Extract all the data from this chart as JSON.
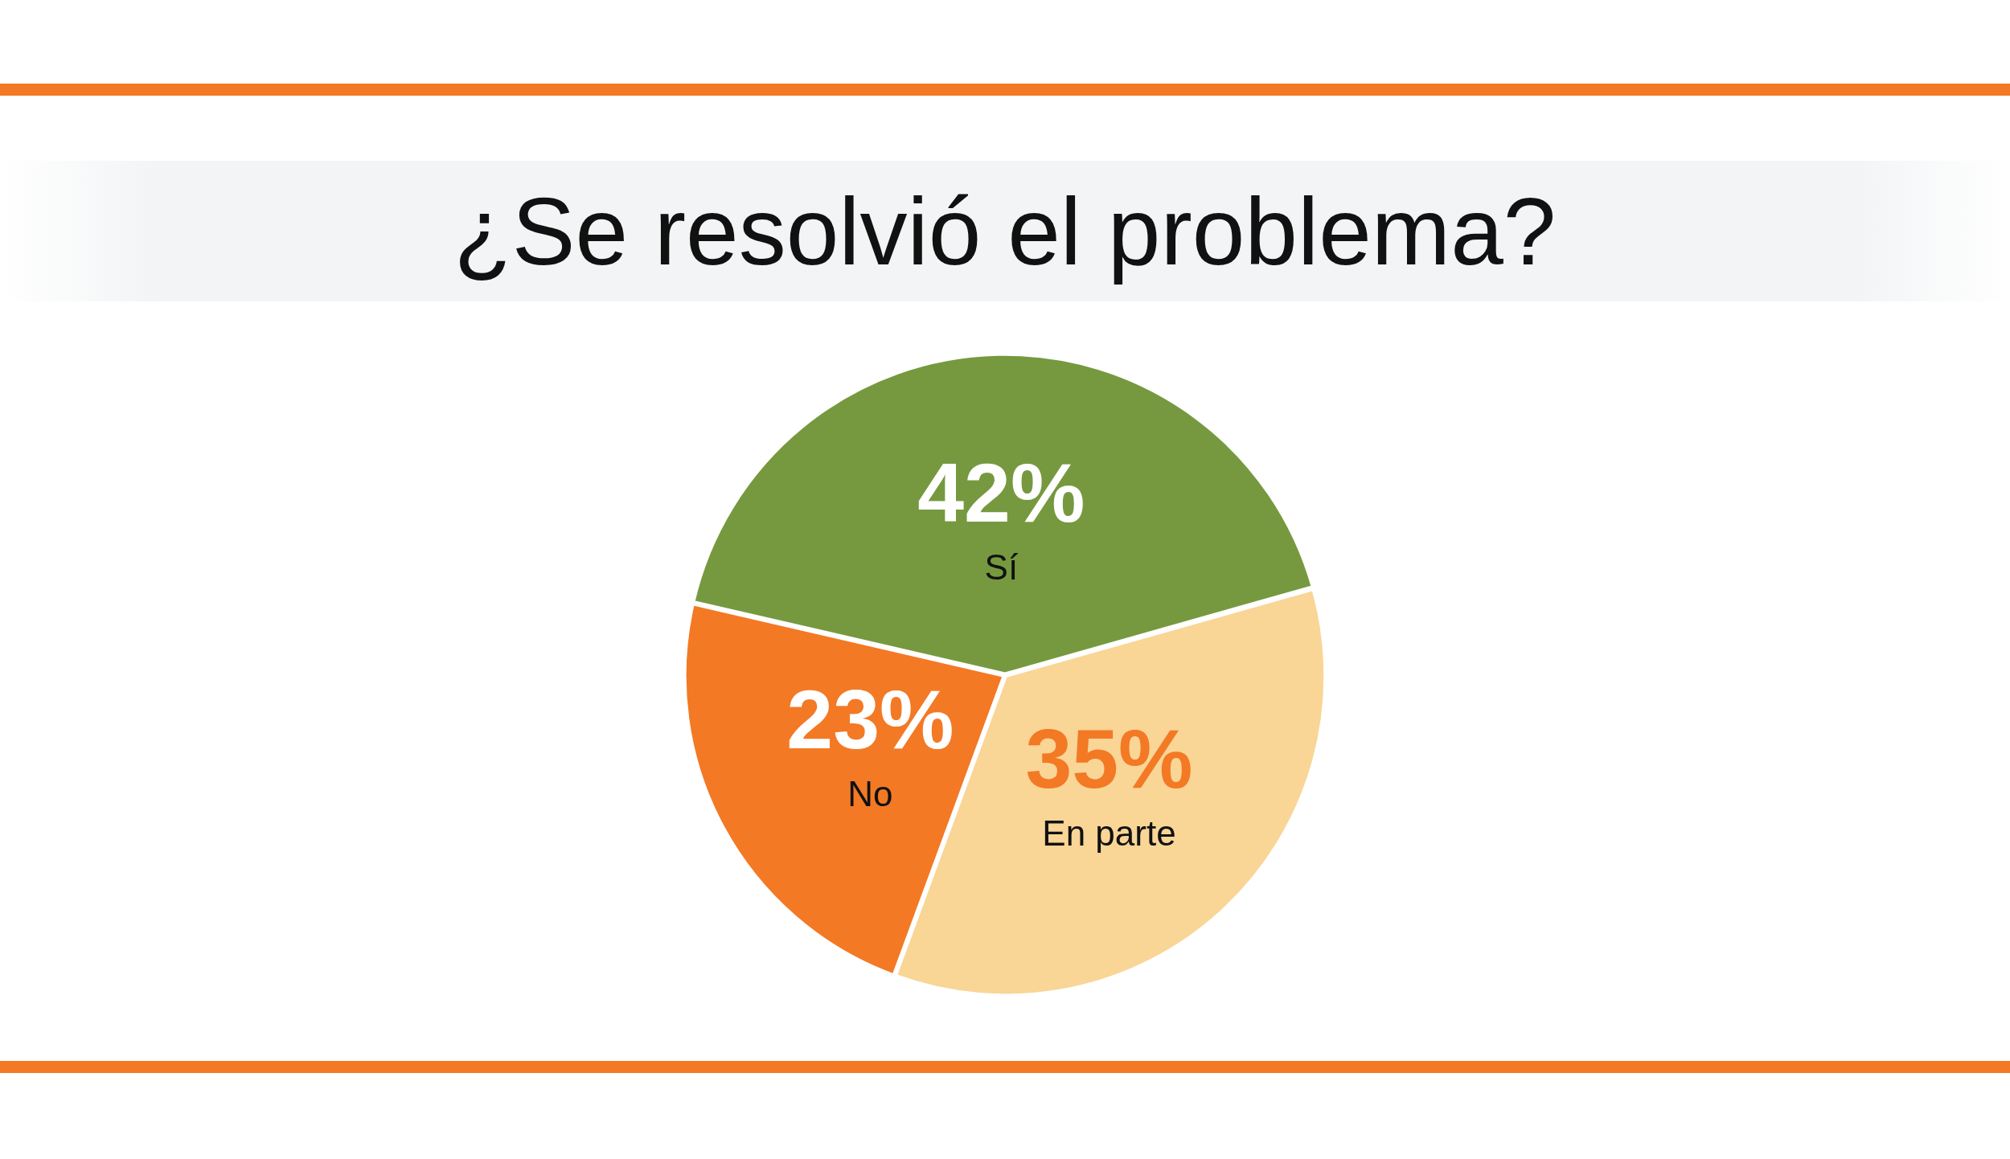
{
  "chart_data": {
    "type": "pie",
    "title": "¿Se resolvió el problema?",
    "categories": [
      "Sí",
      "En parte",
      "No"
    ],
    "values": [
      42,
      35,
      23
    ],
    "colors": [
      "#76993f",
      "#f9d596",
      "#f37925"
    ],
    "value_labels": [
      "42%",
      "35%",
      "23%"
    ],
    "legend": false
  }
}
